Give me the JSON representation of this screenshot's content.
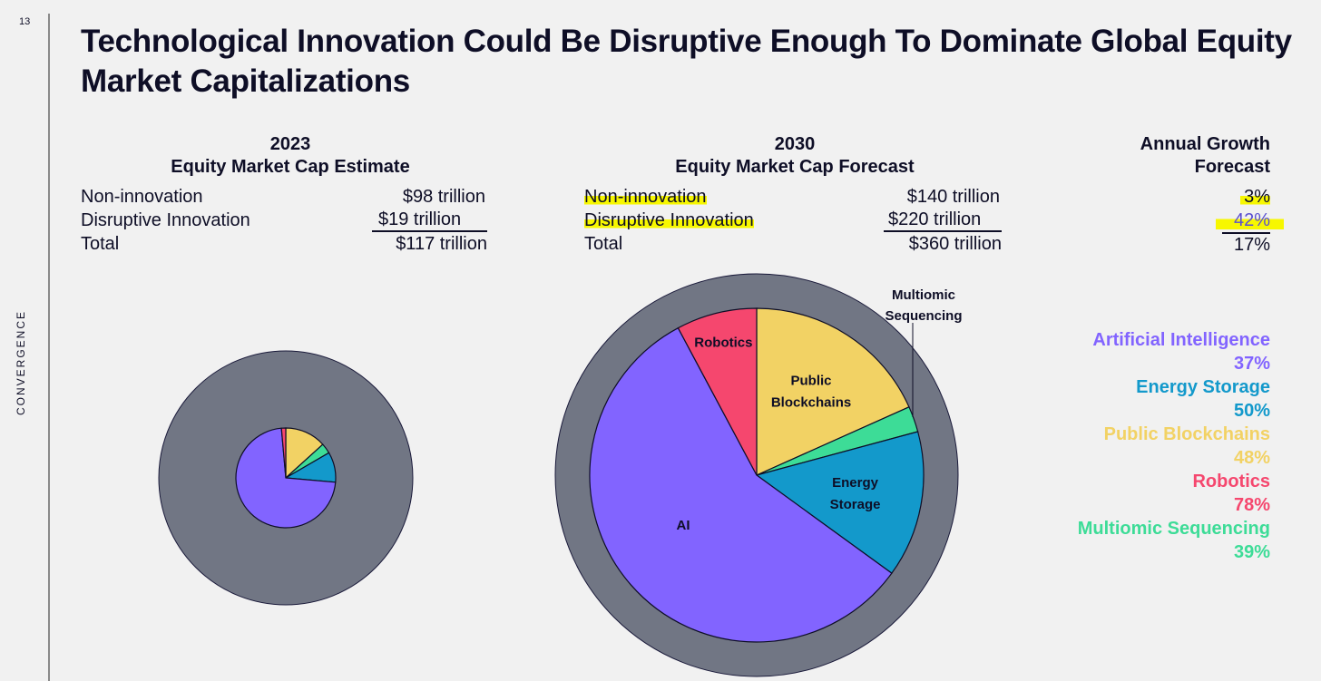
{
  "page_number": "13",
  "side_label": "CONVERGENCE",
  "title": "Technological Innovation Could Be Disruptive Enough To Dominate Global Equity Market Capitalizations",
  "table_2023": {
    "year": "2023",
    "subtitle": "Equity Market Cap Estimate",
    "rows": [
      {
        "label": "Non-innovation",
        "value": "$98 trillion"
      },
      {
        "label": "Disruptive Innovation",
        "value": "$19 trillion"
      },
      {
        "label": "Total",
        "value": "$117 trillion"
      }
    ]
  },
  "table_2030": {
    "year": "2030",
    "subtitle": "Equity Market Cap Forecast",
    "rows": [
      {
        "label": "Non-innovation",
        "value": "$140 trillion"
      },
      {
        "label": "Disruptive Innovation",
        "value": "$220 trillion"
      },
      {
        "label": "Total",
        "value": "$360 trillion"
      }
    ]
  },
  "growth": {
    "header_line1": "Annual Growth",
    "header_line2": "Forecast",
    "values": [
      "3%",
      "42%",
      "17%"
    ]
  },
  "legend": [
    {
      "name": "Artificial Intelligence",
      "growth": "37%",
      "color": "#8264ff"
    },
    {
      "name": "Energy Storage",
      "growth": "50%",
      "color": "#1399cb"
    },
    {
      "name": "Public Blockchains",
      "growth": "48%",
      "color": "#f2d264"
    },
    {
      "name": "Robotics",
      "growth": "78%",
      "color": "#f5476e"
    },
    {
      "name": "Multiomic Sequencing",
      "growth": "39%",
      "color": "#3ddc97"
    }
  ],
  "chart_data": [
    {
      "type": "pie",
      "title": "2023",
      "total_trillion": 117,
      "non_innovation_trillion": 98,
      "innovation_trillion": 19,
      "slices": [
        {
          "name": "Public Blockchains",
          "share": 13.3,
          "color": "#f2d264"
        },
        {
          "name": "Multiomic Sequencing",
          "share": 3.3,
          "color": "#3ddc97"
        },
        {
          "name": "Energy Storage",
          "share": 9.8,
          "color": "#1399cb"
        },
        {
          "name": "AI",
          "share": 72.2,
          "color": "#8264ff"
        },
        {
          "name": "Robotics",
          "share": 1.4,
          "color": "#f5476e"
        }
      ]
    },
    {
      "type": "pie",
      "title": "2030",
      "total_trillion": 360,
      "non_innovation_trillion": 140,
      "innovation_trillion": 220,
      "slices": [
        {
          "name": "Public Blockchains",
          "label": [
            "Public",
            "Blockchains"
          ],
          "share": 18.3,
          "color": "#f2d264"
        },
        {
          "name": "Multiomic Sequencing",
          "label": [
            "Multiomic",
            "Sequencing"
          ],
          "share": 2.5,
          "color": "#3ddc97"
        },
        {
          "name": "Energy Storage",
          "label": [
            "Energy",
            "Storage"
          ],
          "share": 14.2,
          "color": "#1399cb"
        },
        {
          "name": "AI",
          "label": [
            "AI"
          ],
          "share": 57.2,
          "color": "#8264ff"
        },
        {
          "name": "Robotics",
          "label": [
            "Robotics"
          ],
          "share": 7.8,
          "color": "#f5476e"
        }
      ]
    }
  ]
}
